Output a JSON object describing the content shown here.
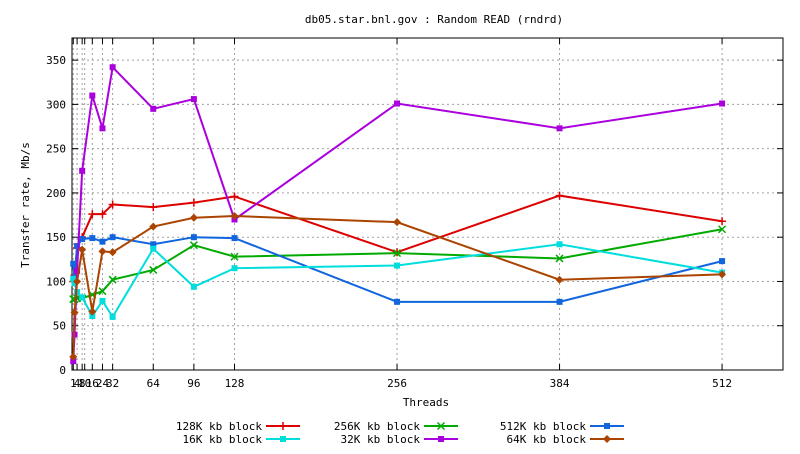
{
  "chart_data": {
    "type": "line",
    "title": "db05.star.bnl.gov : Random READ (rndrd)",
    "xlabel": "Threads",
    "ylabel": "Transfer rate, Mb/s",
    "xlim": [
      0,
      560
    ],
    "ylim": [
      0,
      375
    ],
    "x_ticks": [
      1,
      4,
      8,
      10,
      16,
      24,
      32,
      64,
      96,
      128,
      256,
      384,
      512
    ],
    "x_tick_labels": [
      "1",
      "4",
      "8",
      "10",
      "16",
      "24",
      "32",
      "64",
      "96",
      "128",
      "256",
      "384",
      "512"
    ],
    "y_ticks": [
      0,
      50,
      100,
      150,
      200,
      250,
      300,
      350
    ],
    "grid": true,
    "legend_position": "bottom",
    "x": [
      1,
      2,
      4,
      8,
      16,
      24,
      32,
      64,
      96,
      128,
      256,
      384,
      512
    ],
    "series": [
      {
        "name": "128K kb block",
        "color": "#dd0000",
        "marker": "plus",
        "values": [
          100,
          107,
          138,
          150,
          176,
          176,
          187,
          184,
          189,
          196,
          133,
          197,
          168
        ]
      },
      {
        "name": "256K kb block",
        "color": "#00aa00",
        "marker": "cross",
        "values": [
          80,
          80,
          81,
          81,
          85,
          89,
          102,
          113,
          141,
          128,
          132,
          126,
          159
        ]
      },
      {
        "name": "512K kb block",
        "color": "#1166dd",
        "marker": "square",
        "values": [
          120,
          104,
          140,
          148,
          149,
          145,
          150,
          142,
          150,
          149,
          77,
          77,
          123
        ]
      },
      {
        "name": "16K kb block",
        "color": "#00dddd",
        "marker": "square",
        "values": [
          103,
          98,
          88,
          82,
          61,
          78,
          60,
          137,
          94,
          115,
          118,
          142,
          110
        ]
      },
      {
        "name": "32K kb block",
        "color": "#aa00dd",
        "marker": "square",
        "values": [
          10,
          40,
          112,
          225,
          310,
          273,
          342,
          295,
          306,
          170,
          301,
          273,
          301
        ]
      },
      {
        "name": "64K kb block",
        "color": "#aa4400",
        "marker": "diamond",
        "values": [
          15,
          65,
          100,
          136,
          66,
          134,
          133,
          162,
          172,
          174,
          167,
          102,
          108
        ]
      }
    ]
  }
}
